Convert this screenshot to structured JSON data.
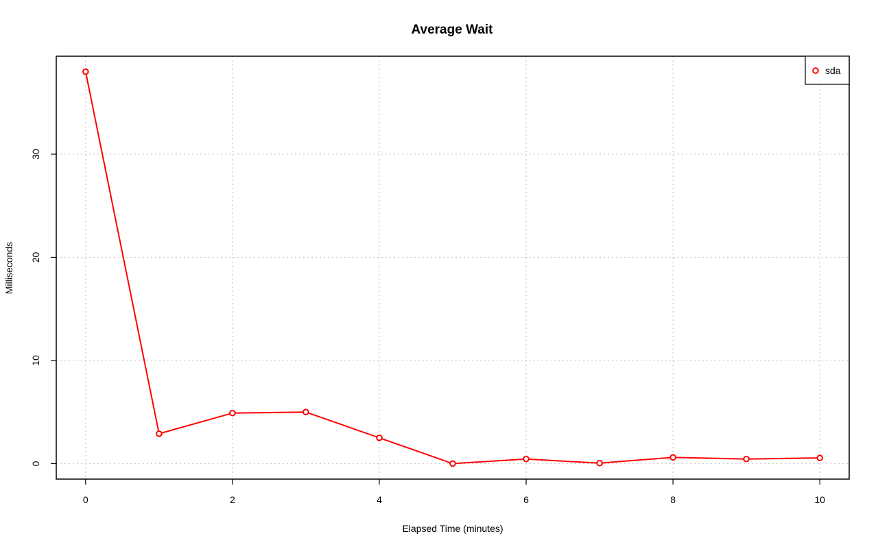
{
  "chart_data": {
    "type": "line",
    "title": "Average Wait",
    "xlabel": "Elapsed Time (minutes)",
    "ylabel": "Milliseconds",
    "xlim": [
      -0.4,
      10.4
    ],
    "ylim": [
      -1.5,
      39.5
    ],
    "x_ticks": [
      0,
      2,
      4,
      6,
      8,
      10
    ],
    "y_ticks": [
      0,
      10,
      20,
      30
    ],
    "grid": true,
    "legend_position": "top-right",
    "series": [
      {
        "name": "sda",
        "color": "#ff0000",
        "marker": "open-circle",
        "x": [
          0,
          1,
          2,
          3,
          4,
          5,
          6,
          7,
          8,
          9,
          10
        ],
        "values": [
          38.0,
          2.9,
          4.9,
          5.0,
          2.5,
          0.0,
          0.45,
          0.05,
          0.6,
          0.45,
          0.55
        ]
      }
    ]
  }
}
